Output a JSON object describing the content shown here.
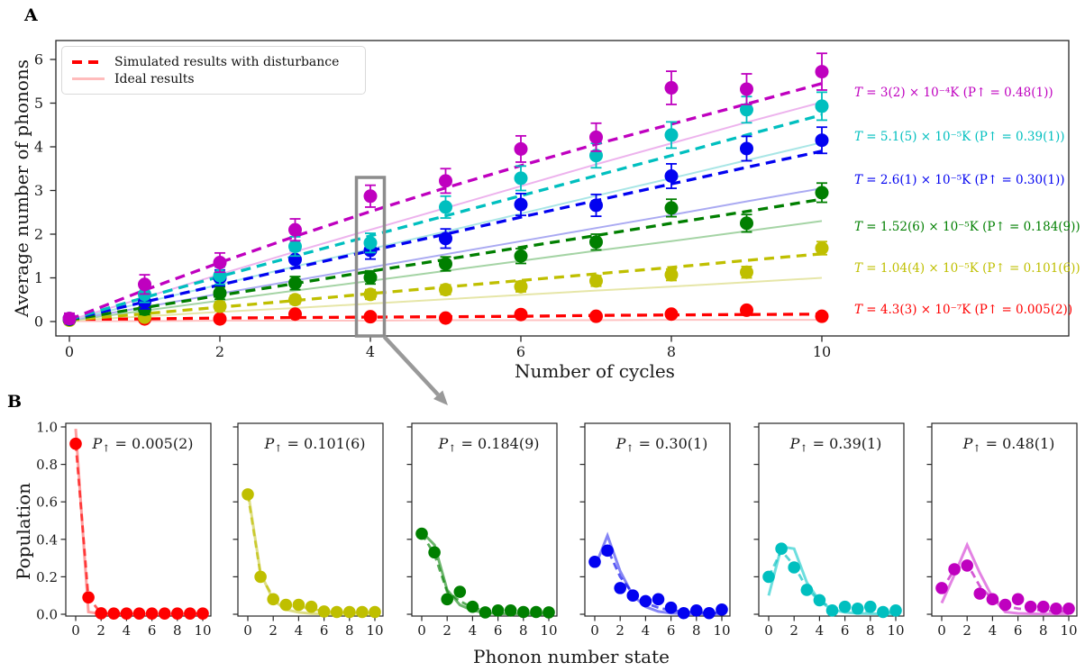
{
  "figure": {
    "panel_a_label": "A",
    "panel_b_label": "B"
  },
  "chart_data": [
    {
      "id": "average-phonons-vs-cycles",
      "type": "scatter",
      "xlabel": "Number of cycles",
      "ylabel": "Average number of phonons",
      "x": [
        0,
        1,
        2,
        3,
        4,
        5,
        6,
        7,
        8,
        9,
        10
      ],
      "xticks": [
        0,
        2,
        4,
        6,
        8,
        10
      ],
      "yticks": [
        0,
        1,
        2,
        3,
        4,
        5,
        6
      ],
      "xlim": [
        -0.2,
        13.3
      ],
      "ylim": [
        -0.35,
        6.45
      ],
      "grid": false,
      "legend_position": "upper left",
      "legend": [
        {
          "label": "Simulated results with disturbance",
          "style": "dashed",
          "color": "#ff0000"
        },
        {
          "label": "Ideal results",
          "style": "solid",
          "color": "#ffbcbc"
        }
      ],
      "series": [
        {
          "label": "T = 3(2) × 10⁻⁴K (P↑ = 0.48(1))",
          "color": "#bf00bf",
          "light_color": "#edb3ed",
          "values": [
            0.07,
            0.85,
            1.35,
            2.1,
            2.87,
            3.22,
            3.95,
            4.22,
            5.35,
            5.32,
            5.72
          ],
          "errors": [
            0.12,
            0.22,
            0.22,
            0.25,
            0.25,
            0.28,
            0.3,
            0.32,
            0.38,
            0.35,
            0.42
          ],
          "sim_line": [
            0.05,
            0.72,
            1.35,
            1.95,
            2.52,
            3.06,
            3.57,
            4.06,
            4.52,
            4.98,
            5.45
          ],
          "ideal_line": [
            0.03,
            0.55,
            1.08,
            1.6,
            2.1,
            2.6,
            3.1,
            3.6,
            4.08,
            4.56,
            5.02
          ]
        },
        {
          "label": "T = 5.1(5) × 10⁻⁵K (P↑ = 0.39(1))",
          "color": "#00bfbf",
          "light_color": "#a9e6e6",
          "values": [
            0.07,
            0.62,
            1.05,
            1.72,
            1.8,
            2.62,
            3.28,
            3.8,
            4.27,
            4.85,
            4.93
          ],
          "errors": [
            0.1,
            0.18,
            0.2,
            0.22,
            0.22,
            0.25,
            0.28,
            0.28,
            0.3,
            0.3,
            0.32
          ],
          "sim_line": [
            0.05,
            0.55,
            1.03,
            1.5,
            1.96,
            2.42,
            2.88,
            3.34,
            3.8,
            4.27,
            4.73
          ],
          "ideal_line": [
            0.03,
            0.44,
            0.85,
            1.26,
            1.66,
            2.06,
            2.47,
            2.88,
            3.28,
            3.69,
            4.1
          ]
        },
        {
          "label": "T = 2.6(1) × 10⁻⁵K (P↑ = 0.30(1))",
          "color": "#0202f0",
          "light_color": "#aaaaf2",
          "values": [
            0.06,
            0.45,
            1.0,
            1.42,
            1.63,
            1.9,
            2.68,
            2.66,
            3.33,
            3.96,
            4.15
          ],
          "errors": [
            0.1,
            0.16,
            0.18,
            0.2,
            0.2,
            0.22,
            0.25,
            0.25,
            0.28,
            0.28,
            0.3
          ],
          "sim_line": [
            0.05,
            0.45,
            0.84,
            1.23,
            1.62,
            2.0,
            2.39,
            2.77,
            3.15,
            3.53,
            3.9
          ],
          "ideal_line": [
            0.03,
            0.33,
            0.64,
            0.94,
            1.24,
            1.54,
            1.84,
            2.14,
            2.44,
            2.75,
            3.05
          ]
        },
        {
          "label": "T = 1.52(6) × 10⁻⁵K (P↑ = 0.184(9))",
          "color": "#007f00",
          "light_color": "#a5d4a5",
          "values": [
            0.05,
            0.28,
            0.65,
            0.88,
            1.01,
            1.32,
            1.5,
            1.82,
            2.6,
            2.25,
            2.95
          ],
          "errors": [
            0.08,
            0.12,
            0.14,
            0.15,
            0.15,
            0.16,
            0.17,
            0.18,
            0.2,
            0.2,
            0.22
          ],
          "sim_line": [
            0.04,
            0.32,
            0.6,
            0.87,
            1.15,
            1.42,
            1.7,
            1.97,
            2.25,
            2.52,
            2.8
          ],
          "ideal_line": [
            0.02,
            0.25,
            0.48,
            0.71,
            0.93,
            1.16,
            1.39,
            1.62,
            1.84,
            2.07,
            2.3
          ]
        },
        {
          "label": "T = 1.04(4) × 10⁻⁵K (P↑ = 0.101(6))",
          "color": "#bfbf00",
          "light_color": "#e6e6a8",
          "values": [
            0.03,
            0.1,
            0.35,
            0.5,
            0.62,
            0.73,
            0.8,
            0.93,
            1.07,
            1.13,
            1.68
          ],
          "errors": [
            0.06,
            0.08,
            0.1,
            0.1,
            0.11,
            0.11,
            0.12,
            0.12,
            0.13,
            0.13,
            0.15
          ],
          "sim_line": [
            0.03,
            0.18,
            0.33,
            0.48,
            0.64,
            0.79,
            0.94,
            1.09,
            1.24,
            1.4,
            1.55
          ],
          "ideal_line": [
            0.02,
            0.12,
            0.22,
            0.31,
            0.41,
            0.51,
            0.61,
            0.71,
            0.8,
            0.9,
            1.0
          ]
        },
        {
          "label": "T = 4.3(3) × 10⁻⁷K (P↑ = 0.005(2))",
          "color": "#ff0000",
          "light_color": "#ffc2c2",
          "values": [
            0.05,
            0.06,
            0.06,
            0.17,
            0.11,
            0.08,
            0.16,
            0.12,
            0.17,
            0.26,
            0.12
          ],
          "errors": [
            0.04,
            0.04,
            0.04,
            0.05,
            0.05,
            0.05,
            0.05,
            0.05,
            0.06,
            0.06,
            0.06
          ],
          "sim_line": [
            0.05,
            0.06,
            0.08,
            0.09,
            0.1,
            0.11,
            0.12,
            0.14,
            0.15,
            0.16,
            0.17
          ],
          "ideal_line": [
            0.01,
            0.01,
            0.02,
            0.02,
            0.02,
            0.03,
            0.03,
            0.03,
            0.04,
            0.04,
            0.04
          ]
        }
      ],
      "annotation": {
        "highlighted_cycle": 4
      }
    },
    {
      "id": "phonon-number-distributions",
      "type": "scatter-grid",
      "xlabel": "Phonon number state",
      "ylabel": "Population",
      "x": [
        0,
        1,
        2,
        3,
        4,
        5,
        6,
        7,
        8,
        9,
        10
      ],
      "xticks": [
        0,
        2,
        4,
        6,
        8,
        10
      ],
      "yticks": [
        0.0,
        0.2,
        0.4,
        0.6,
        0.8,
        1.0
      ],
      "subplots": [
        {
          "title": "P↑ = 0.005(2)",
          "color": "#ff0000",
          "light_color": "#ff9d9d",
          "points": [
            0.91,
            0.09,
            0.005,
            0.004,
            0.004,
            0.004,
            0.004,
            0.004,
            0.004,
            0.004,
            0.004
          ],
          "dashed_line": [
            0.91,
            0.09,
            0.005,
            0.004,
            0.004,
            0.004,
            0.004,
            0.004,
            0.004,
            0.004,
            0.004
          ],
          "solid_line": [
            0.99,
            0.012,
            0.002,
            0.001,
            0.001,
            0.001,
            0.001,
            0.001,
            0.001,
            0.001,
            0.001
          ]
        },
        {
          "title": "P↑ = 0.101(6)",
          "color": "#bfbf00",
          "light_color": "#dede85",
          "points": [
            0.64,
            0.2,
            0.08,
            0.05,
            0.05,
            0.04,
            0.015,
            0.012,
            0.012,
            0.012,
            0.012
          ],
          "dashed_line": [
            0.64,
            0.21,
            0.09,
            0.05,
            0.04,
            0.03,
            0.015,
            0.012,
            0.01,
            0.01,
            0.01
          ],
          "solid_line": [
            0.66,
            0.22,
            0.075,
            0.025,
            0.01,
            0.004,
            0.002,
            0.001,
            0.001,
            0.0,
            0.0
          ]
        },
        {
          "title": "P↑ = 0.184(9)",
          "color": "#007f00",
          "light_color": "#6cb56c",
          "points": [
            0.43,
            0.33,
            0.08,
            0.12,
            0.04,
            0.01,
            0.02,
            0.02,
            0.012,
            0.012,
            0.01
          ],
          "dashed_line": [
            0.43,
            0.32,
            0.12,
            0.07,
            0.035,
            0.02,
            0.015,
            0.012,
            0.01,
            0.01,
            0.01
          ],
          "solid_line": [
            0.44,
            0.37,
            0.13,
            0.05,
            0.02,
            0.008,
            0.003,
            0.002,
            0.001,
            0.001,
            0.0
          ]
        },
        {
          "title": "P↑ = 0.30(1)",
          "color": "#0202f0",
          "light_color": "#8585f5",
          "points": [
            0.28,
            0.34,
            0.14,
            0.1,
            0.07,
            0.08,
            0.035,
            0.006,
            0.02,
            0.006,
            0.025
          ],
          "dashed_line": [
            0.27,
            0.35,
            0.2,
            0.11,
            0.06,
            0.035,
            0.02,
            0.015,
            0.01,
            0.008,
            0.008
          ],
          "solid_line": [
            0.25,
            0.42,
            0.23,
            0.1,
            0.04,
            0.015,
            0.006,
            0.003,
            0.002,
            0.001,
            0.001
          ]
        },
        {
          "title": "P↑ = 0.39(1)",
          "color": "#00bfbf",
          "light_color": "#6cdede",
          "points": [
            0.2,
            0.35,
            0.25,
            0.13,
            0.075,
            0.02,
            0.04,
            0.03,
            0.04,
            0.012,
            0.02
          ],
          "dashed_line": [
            0.2,
            0.34,
            0.26,
            0.14,
            0.07,
            0.035,
            0.025,
            0.02,
            0.015,
            0.012,
            0.01
          ],
          "solid_line": [
            0.1,
            0.36,
            0.35,
            0.17,
            0.07,
            0.025,
            0.01,
            0.005,
            0.003,
            0.002,
            0.001
          ]
        },
        {
          "title": "P↑ = 0.48(1)",
          "color": "#bf00bf",
          "light_color": "#e382e3",
          "points": [
            0.14,
            0.24,
            0.26,
            0.11,
            0.08,
            0.05,
            0.08,
            0.04,
            0.04,
            0.03,
            0.03
          ],
          "dashed_line": [
            0.13,
            0.24,
            0.27,
            0.15,
            0.08,
            0.045,
            0.03,
            0.025,
            0.02,
            0.015,
            0.015
          ],
          "solid_line": [
            0.06,
            0.21,
            0.37,
            0.22,
            0.09,
            0.012,
            0.005,
            0.003,
            0.002,
            0.001,
            0.001
          ]
        }
      ]
    }
  ]
}
